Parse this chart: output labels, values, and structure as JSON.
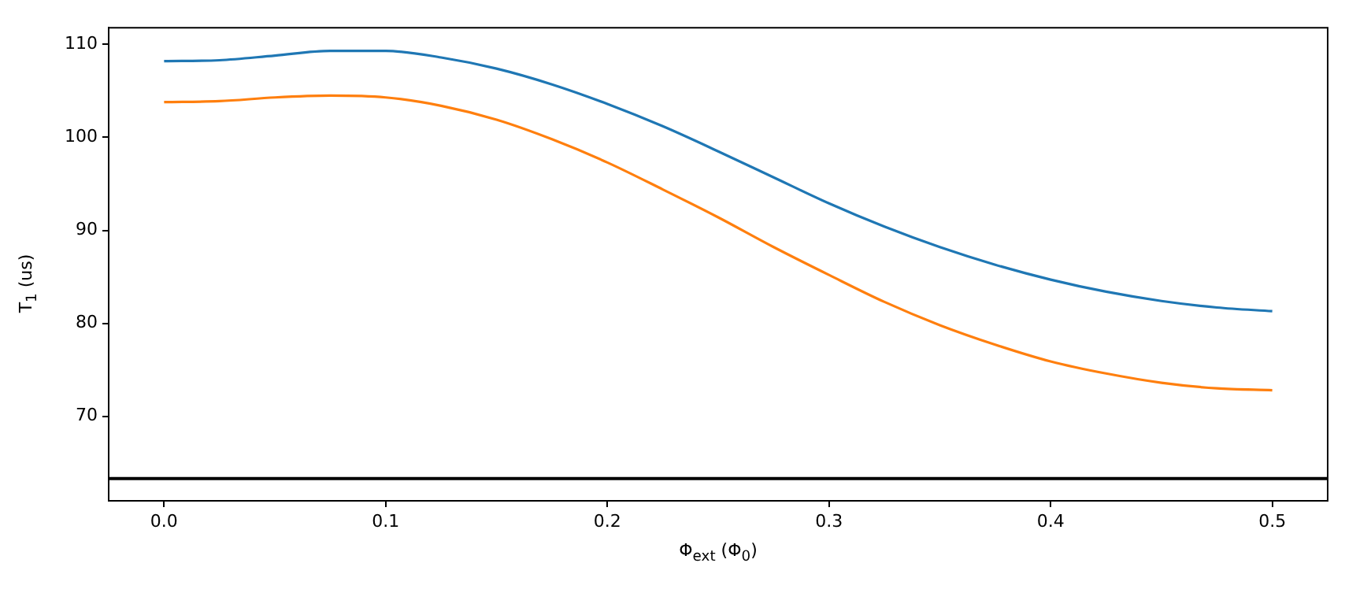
{
  "chart_data": {
    "type": "line",
    "xlabel": "Φ$_{ext}$ (Φ$_{0}$)",
    "ylabel": "T$_{1}$ (us)",
    "x": [
      0,
      0.025,
      0.05,
      0.075,
      0.1,
      0.125,
      0.15,
      0.175,
      0.2,
      0.225,
      0.25,
      0.275,
      0.3,
      0.325,
      0.35,
      0.375,
      0.4,
      0.425,
      0.45,
      0.475,
      0.5
    ],
    "series": [
      {
        "color": "#1f77b4",
        "values": [
          108.2,
          108.3,
          108.8,
          109.3,
          109.3,
          108.6,
          107.4,
          105.7,
          103.6,
          101.2,
          98.5,
          95.7,
          92.9,
          90.4,
          88.2,
          86.3,
          84.7,
          83.4,
          82.4,
          81.7,
          81.3
        ]
      },
      {
        "color": "#ff7f0e",
        "values": [
          103.8,
          103.9,
          104.3,
          104.5,
          104.3,
          103.4,
          101.9,
          99.8,
          97.3,
          94.4,
          91.4,
          88.2,
          85.2,
          82.3,
          79.8,
          77.7,
          75.9,
          74.6,
          73.6,
          73.0,
          72.8
        ]
      }
    ],
    "xlim": [
      -0.025,
      0.525
    ],
    "ylim": [
      60.9,
      111.8
    ],
    "xticks": [
      {
        "value": 0,
        "label": "0.0"
      },
      0.1,
      0.2,
      0.3,
      0.4,
      0.5
    ],
    "yticks": [
      70,
      80,
      90,
      100,
      110
    ],
    "ref_lines": [
      {
        "axis": "y",
        "value": 63.3,
        "color": "#000000"
      }
    ],
    "grid": false,
    "legend": false,
    "marker": "none",
    "line_style": "solid"
  }
}
